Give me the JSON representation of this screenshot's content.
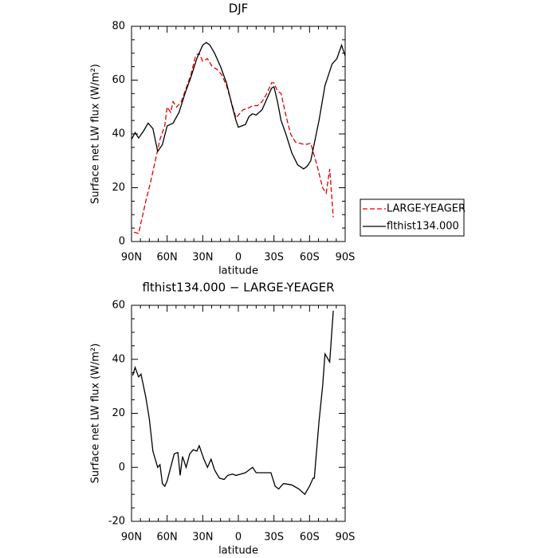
{
  "chart_data": [
    {
      "type": "line",
      "title": "DJF",
      "xlabel": "latitude",
      "ylabel": "Surface net LW flux (W/m²)",
      "xlim": [
        90,
        -90
      ],
      "xticks": [
        {
          "value": 90,
          "label": "90N"
        },
        {
          "value": 60,
          "label": "60N"
        },
        {
          "value": 30,
          "label": "30N"
        },
        0,
        {
          "value": -30,
          "label": "30S"
        },
        {
          "value": -60,
          "label": "60S"
        },
        {
          "value": -90,
          "label": "90S"
        }
      ],
      "ylim": [
        0,
        80
      ],
      "yticks": [
        0,
        20,
        40,
        60,
        80
      ],
      "legend": "right",
      "series": [
        {
          "name": "LARGE-YEAGER",
          "color": "#e00000",
          "dash": true,
          "x": [
            88,
            84,
            82,
            78,
            74,
            70,
            66,
            62,
            60,
            57,
            55,
            52,
            48,
            44,
            40,
            36,
            33,
            30,
            26,
            22,
            18,
            14,
            10,
            6,
            2,
            0,
            -4,
            -8,
            -12,
            -16,
            -20,
            -24,
            -28,
            -30,
            -33,
            -36,
            -40,
            -44,
            -48,
            -52,
            -56,
            -61,
            -66.5,
            -71,
            -74,
            -77,
            -80
          ],
          "values": [
            3.5,
            3,
            7,
            15,
            22,
            30,
            38,
            43,
            50,
            48,
            52,
            50,
            52,
            57,
            62,
            69,
            70,
            67,
            68,
            65,
            64,
            62,
            58,
            52,
            46,
            47,
            49,
            49.5,
            50.5,
            50.5,
            52,
            55,
            59,
            59,
            56,
            55,
            47,
            40,
            37,
            36.5,
            36,
            36.5,
            28,
            20,
            18,
            27,
            9
          ]
        },
        {
          "name": "flthist134.000",
          "color": "#000000",
          "dash": false,
          "x": [
            90,
            87,
            84,
            80,
            76,
            72,
            68,
            64,
            60,
            55,
            50,
            45,
            40,
            35,
            30,
            27,
            24,
            20,
            15,
            10,
            5,
            2,
            0,
            -3,
            -6,
            -9,
            -12,
            -15,
            -20,
            -24,
            -28,
            -30,
            -33,
            -36,
            -40,
            -45,
            -50,
            -55,
            -58,
            -61,
            -68,
            -73,
            -79,
            -83,
            -87,
            -90
          ],
          "values": [
            38,
            40.5,
            38.5,
            41,
            44,
            42,
            33.5,
            36,
            43,
            44,
            48,
            55,
            61,
            68,
            73,
            74,
            73,
            70,
            65,
            59,
            50,
            45,
            42.5,
            43,
            43.5,
            46.5,
            47.5,
            47,
            49,
            53,
            57,
            57.5,
            52,
            45,
            40,
            33,
            28.5,
            27,
            28,
            30,
            45,
            58,
            66,
            68,
            73,
            69
          ]
        }
      ]
    },
    {
      "type": "line",
      "title": "flthist134.000 − LARGE-YEAGER",
      "xlabel": "latitude",
      "ylabel": "Surface net LW flux (W/m²)",
      "xlim": [
        90,
        -90
      ],
      "xticks": [
        {
          "value": 90,
          "label": "90N"
        },
        {
          "value": 60,
          "label": "60N"
        },
        {
          "value": 30,
          "label": "30N"
        },
        0,
        {
          "value": -30,
          "label": "30S"
        },
        {
          "value": -60,
          "label": "60S"
        },
        {
          "value": -90,
          "label": "90S"
        }
      ],
      "ylim": [
        -20,
        60
      ],
      "yticks": [
        -20,
        0,
        20,
        40,
        60
      ],
      "series": [
        {
          "color": "#000000",
          "dash": false,
          "x": [
            89,
            87,
            84,
            82,
            78,
            75,
            72,
            68,
            66,
            64,
            62,
            60,
            57,
            54,
            51,
            49,
            47,
            44,
            41,
            38,
            35,
            33,
            29,
            26,
            23,
            20,
            16,
            12,
            9,
            5,
            2,
            -2,
            -6,
            -9,
            -12,
            -15,
            -20,
            -23,
            -27.5,
            -31,
            -34,
            -38,
            -45,
            -51,
            -56,
            -60,
            -63,
            -64,
            -68,
            -71,
            -73,
            -77,
            -80
          ],
          "values": [
            34,
            37,
            33.5,
            34.5,
            26,
            18,
            6,
            0,
            1,
            -6,
            -7,
            -5,
            0,
            5,
            5.5,
            -3,
            4,
            0,
            5,
            6.5,
            6,
            8,
            3,
            0,
            3,
            -1,
            -4,
            -4.5,
            -3,
            -2.5,
            -3,
            -2.5,
            -2,
            -1,
            0,
            -2,
            -2,
            -2,
            -2,
            -7,
            -8,
            -6,
            -6.5,
            -8,
            -10,
            -7,
            -4,
            -4,
            17,
            30,
            42,
            39,
            58
          ]
        }
      ]
    }
  ]
}
